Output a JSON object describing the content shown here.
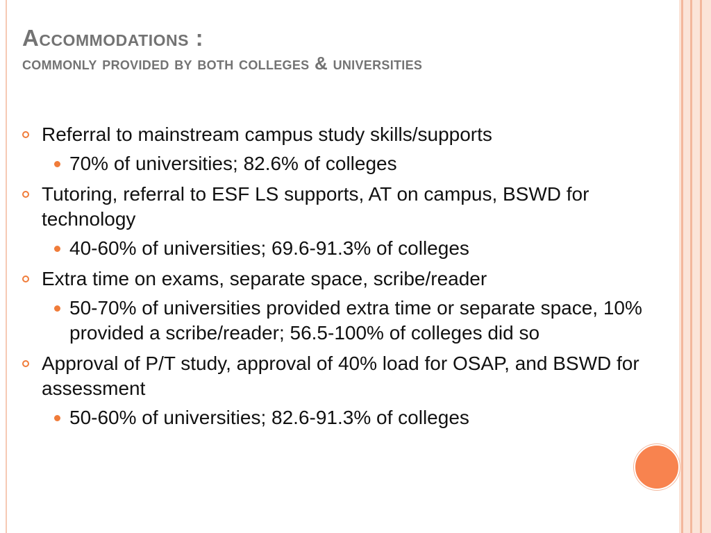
{
  "slide": {
    "title": "Accommodations :",
    "subtitle": "commonly provided by both colleges & universities",
    "bullets": [
      {
        "text": "Referral to mainstream campus study skills/supports",
        "sub": [
          "70% of universities; 82.6% of colleges"
        ]
      },
      {
        "text": "Tutoring, referral to ESF LS supports, AT on campus, BSWD for technology",
        "sub": [
          "40-60% of universities; 69.6-91.3% of colleges"
        ]
      },
      {
        "text": "Extra time on exams, separate space, scribe/reader",
        "sub": [
          "50-70% of universities provided extra time or separate space, 10% provided a scribe/reader; 56.5-100% of colleges did so"
        ]
      },
      {
        "text": "Approval of P/T study, approval of 40% load for OSAP, and BSWD for assessment",
        "sub": [
          "50-60% of universities; 82.6-91.3% of colleges"
        ]
      }
    ]
  },
  "colors": {
    "accent": "#f07c3a",
    "title": "#737373",
    "stripe": "#f3b79c",
    "circle": "#f8834f"
  }
}
